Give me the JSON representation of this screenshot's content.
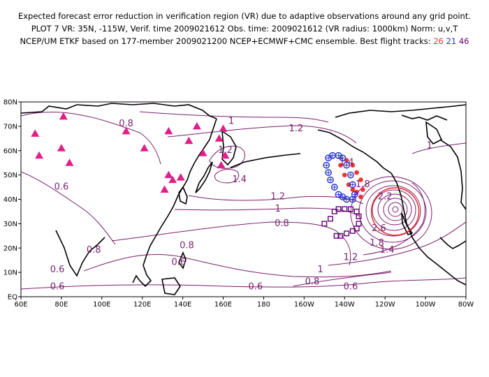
{
  "header": {
    "line1": "Expected forecast error reduction in verification region (VR) due to adaptive observations around any grid point.",
    "line2": "PLOT 7 VR: 35N, -115W, Verif. time 2009021612 Obs. time: 2009021612 (VR radius: 1000km) Norm: u,v,T",
    "line3_prefix": "NCEP/UM ETKF based on 177-member 2009021200 NCEP+ECMWF+CMC ensemble. Best flight tracks:",
    "track_a": "26",
    "track_b": "21",
    "track_c": "46"
  },
  "axes": {
    "lat_ticks": [
      "80N",
      "70N",
      "60N",
      "50N",
      "40N",
      "30N",
      "20N",
      "10N",
      "EQ"
    ],
    "lon_ticks": [
      "60E",
      "80E",
      "100E",
      "120E",
      "140E",
      "160E",
      "180",
      "160W",
      "140W",
      "120W",
      "100W",
      "80W"
    ]
  },
  "contour_labels": [
    {
      "text": "0.8",
      "lon": 112,
      "lat": 70
    },
    {
      "text": "1",
      "lon": 164,
      "lat": 71
    },
    {
      "text": "1.2",
      "lon": 196,
      "lat": 68
    },
    {
      "text": "1",
      "lon": 262,
      "lat": 61
    },
    {
      "text": "1.2",
      "lon": 161,
      "lat": 59
    },
    {
      "text": "1.4",
      "lon": 168,
      "lat": 47
    },
    {
      "text": "0.6",
      "lon": 80,
      "lat": 44
    },
    {
      "text": "1.2",
      "lon": 187,
      "lat": 40
    },
    {
      "text": "1",
      "lon": 187,
      "lat": 35
    },
    {
      "text": "0.8",
      "lon": 189,
      "lat": 29
    },
    {
      "text": "1.4",
      "lon": 221,
      "lat": 54
    },
    {
      "text": "1.8",
      "lon": 229,
      "lat": 45
    },
    {
      "text": "2.2",
      "lon": 240,
      "lat": 40
    },
    {
      "text": "2.6",
      "lon": 237,
      "lat": 27
    },
    {
      "text": "1.8",
      "lon": 236,
      "lat": 21
    },
    {
      "text": "1.4",
      "lon": 241,
      "lat": 18
    },
    {
      "text": "1.2",
      "lon": 223,
      "lat": 15
    },
    {
      "text": "1",
      "lon": 208,
      "lat": 10
    },
    {
      "text": "0.8",
      "lon": 142,
      "lat": 20
    },
    {
      "text": "0.6",
      "lon": 138,
      "lat": 13
    },
    {
      "text": "0.8",
      "lon": 96,
      "lat": 18
    },
    {
      "text": "0.6",
      "lon": 78,
      "lat": 10
    },
    {
      "text": "0.6",
      "lon": 78,
      "lat": 3
    },
    {
      "text": "0.6",
      "lon": 176,
      "lat": 3
    },
    {
      "text": "0.8",
      "lon": 204,
      "lat": 5
    },
    {
      "text": "0.6",
      "lon": 223,
      "lat": 3
    }
  ],
  "verification_region": {
    "lon": 245,
    "lat": 35,
    "color": "#ee3333"
  },
  "stations_lonlat": [
    [
      67,
      67
    ],
    [
      69,
      58
    ],
    [
      80,
      61
    ],
    [
      84,
      55
    ],
    [
      81,
      74
    ],
    [
      112,
      68
    ],
    [
      121,
      61
    ],
    [
      133,
      68
    ],
    [
      147,
      70
    ],
    [
      160,
      69
    ],
    [
      143,
      64
    ],
    [
      150,
      59
    ],
    [
      158,
      65
    ],
    [
      159,
      54
    ],
    [
      161,
      58
    ],
    [
      133,
      50
    ],
    [
      135,
      48
    ],
    [
      139,
      49
    ],
    [
      131,
      44
    ]
  ],
  "tracks": {
    "track_a": {
      "color": "#ee3333",
      "marker": "filled-circle",
      "points": [
        [
          218,
          54
        ],
        [
          220,
          50
        ],
        [
          222,
          46
        ],
        [
          224,
          44
        ],
        [
          226,
          43
        ],
        [
          228,
          41
        ],
        [
          229,
          44
        ],
        [
          228,
          48
        ],
        [
          226,
          51
        ],
        [
          224,
          54
        ],
        [
          221,
          56
        ]
      ]
    },
    "track_b": {
      "color": "#2233cc",
      "marker": "open-circle-cross",
      "points": [
        [
          212,
          57
        ],
        [
          211,
          54
        ],
        [
          212,
          51
        ],
        [
          213,
          48
        ],
        [
          215,
          45
        ],
        [
          217,
          42
        ],
        [
          219,
          41
        ],
        [
          221,
          40
        ],
        [
          224,
          40
        ],
        [
          225,
          42
        ],
        [
          224,
          46
        ],
        [
          223,
          50
        ],
        [
          221,
          54
        ],
        [
          219,
          57
        ],
        [
          217,
          58
        ],
        [
          214,
          58
        ]
      ]
    },
    "track_c": {
      "color": "#660077",
      "marker": "open-square",
      "points": [
        [
          210,
          30
        ],
        [
          213,
          32
        ],
        [
          215,
          35
        ],
        [
          217,
          36
        ],
        [
          220,
          36
        ],
        [
          223,
          36
        ],
        [
          226,
          35
        ],
        [
          227,
          33
        ],
        [
          227,
          30
        ],
        [
          226,
          28
        ],
        [
          224,
          27
        ],
        [
          221,
          26
        ],
        [
          218,
          25
        ],
        [
          216,
          25
        ]
      ]
    }
  },
  "colors": {
    "contour": "#7a1f6e",
    "coast": "#000000",
    "station": "#e0208a"
  }
}
